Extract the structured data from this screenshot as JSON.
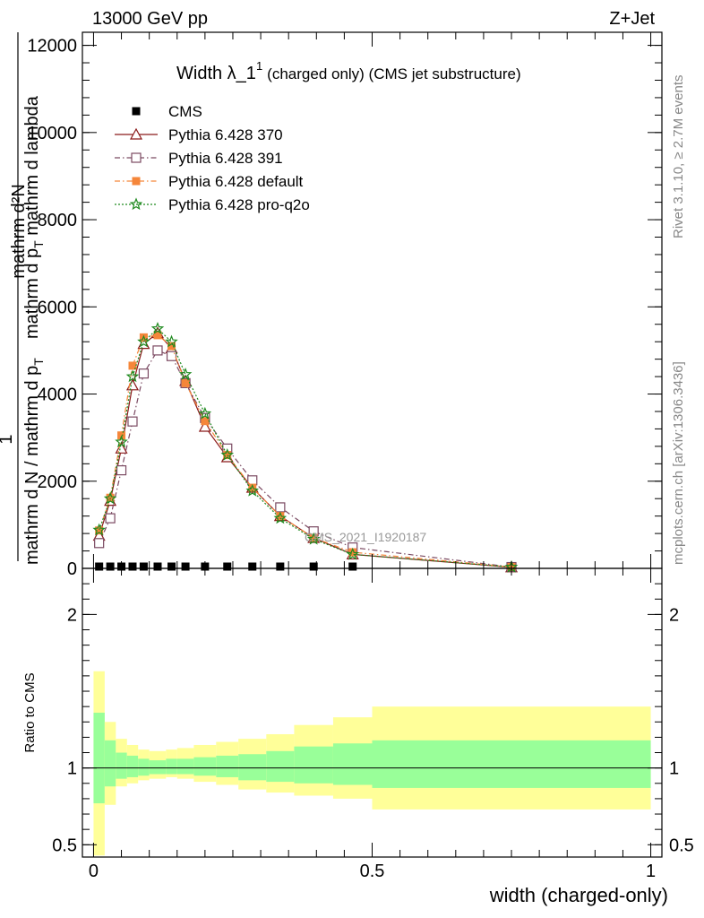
{
  "header": {
    "left": "13000 GeV pp",
    "right": "Z+Jet"
  },
  "title": {
    "main": "Width λ_1",
    "superscript": "1",
    "note": "(charged only) (CMS jet substructure)"
  },
  "side_text": {
    "rivet": "Rivet 3.1.10, ≥ 2.7M events",
    "source": "mcplots.cern.ch [arXiv:1306.3436]"
  },
  "analysis_label": "CMS_2021_I1920187",
  "ylabel_main": {
    "numerator_line1": "mathrm d²N",
    "numerator_line2": "mathrm d p",
    "numerator_sub": "T",
    "numerator_line3": " mathrm d lambda",
    "leading_one": "1",
    "denominator": "mathrm d N / mathrm d p",
    "denominator_sub": "T"
  },
  "ylabel_ratio": "Ratio to CMS",
  "xlabel": "width (charged-only)",
  "colors": {
    "cms": "#000000",
    "p370": "#8b1a1a",
    "p391": "#7b4a62",
    "pdefault": "#f5863a",
    "pq2o": "#1f8a1f",
    "band_outer": "#ffff99",
    "band_inner": "#99ff99"
  },
  "chart_data": [
    {
      "type": "line",
      "panel": "main",
      "xlim": [
        -0.02,
        1.02
      ],
      "ylim": [
        0,
        12300
      ],
      "yticks": [
        0,
        2000,
        4000,
        6000,
        8000,
        10000,
        12000
      ],
      "ytick_labels": [
        "0",
        "2000",
        "4000",
        "6000",
        "8000",
        "10000",
        "12000"
      ],
      "legend_position": "top-left",
      "bins": [
        0.0,
        0.02,
        0.04,
        0.06,
        0.08,
        0.1,
        0.13,
        0.15,
        0.18,
        0.22,
        0.26,
        0.31,
        0.36,
        0.43,
        0.5,
        1.0
      ],
      "x": [
        0.01,
        0.03,
        0.05,
        0.07,
        0.09,
        0.115,
        0.14,
        0.165,
        0.2,
        0.24,
        0.285,
        0.335,
        0.395,
        0.465,
        0.75
      ],
      "series": [
        {
          "name": "CMS",
          "key": "cms",
          "marker": "square-filled",
          "values": [
            30,
            30,
            30,
            30,
            30,
            30,
            30,
            30,
            30,
            30,
            30,
            30,
            30,
            30,
            30
          ]
        },
        {
          "name": "Pythia 6.428 370",
          "key": "p370",
          "marker": "triangle-open",
          "dash": "",
          "values": [
            750,
            1550,
            2750,
            4200,
            5150,
            5400,
            5050,
            4300,
            3250,
            2550,
            1850,
            1200,
            700,
            320,
            25
          ]
        },
        {
          "name": "Pythia 6.428 391",
          "key": "p391",
          "marker": "square-open",
          "dash": "6,3,1.5,3",
          "values": [
            580,
            1150,
            2250,
            3370,
            4470,
            5000,
            4870,
            4250,
            3450,
            2750,
            2020,
            1400,
            850,
            480,
            30
          ]
        },
        {
          "name": "Pythia 6.428 default",
          "key": "pdefault",
          "marker": "square-filled",
          "dash": "6,3,1.5,3",
          "values": [
            870,
            1620,
            3050,
            4650,
            5300,
            5350,
            5100,
            4250,
            3380,
            2600,
            1850,
            1200,
            700,
            370,
            30
          ]
        },
        {
          "name": "Pythia 6.428 pro-q2o",
          "key": "pq2o",
          "marker": "star",
          "dash": "2,2",
          "values": [
            880,
            1600,
            2900,
            4400,
            5200,
            5500,
            5200,
            4450,
            3550,
            2600,
            1780,
            1150,
            670,
            320,
            30
          ]
        }
      ]
    },
    {
      "type": "area",
      "panel": "ratio",
      "xlim": [
        -0.02,
        1.02
      ],
      "ylim": [
        0.42,
        2.3
      ],
      "yticks": [
        0.5,
        1,
        2
      ],
      "ytick_labels": [
        "0.5",
        "1",
        "2"
      ],
      "xticks": [
        0,
        0.5,
        1
      ],
      "xtick_labels": [
        "0",
        "0.5",
        "1"
      ],
      "bins": [
        0.0,
        0.02,
        0.04,
        0.06,
        0.08,
        0.1,
        0.13,
        0.15,
        0.18,
        0.22,
        0.26,
        0.31,
        0.36,
        0.43,
        0.5,
        1.0
      ],
      "reference": 1,
      "band_outer": {
        "lo": [
          0.43,
          0.76,
          0.88,
          0.9,
          0.92,
          0.93,
          0.94,
          0.93,
          0.91,
          0.89,
          0.86,
          0.84,
          0.82,
          0.8,
          0.73
        ],
        "hi": [
          1.63,
          1.3,
          1.19,
          1.15,
          1.12,
          1.11,
          1.12,
          1.13,
          1.15,
          1.17,
          1.19,
          1.22,
          1.28,
          1.33,
          1.4
        ]
      },
      "band_inner": {
        "lo": [
          0.77,
          0.88,
          0.93,
          0.94,
          0.95,
          0.96,
          0.96,
          0.96,
          0.95,
          0.94,
          0.92,
          0.91,
          0.9,
          0.89,
          0.87
        ],
        "hi": [
          1.36,
          1.18,
          1.1,
          1.08,
          1.06,
          1.05,
          1.06,
          1.06,
          1.07,
          1.08,
          1.09,
          1.11,
          1.14,
          1.16,
          1.18
        ]
      }
    }
  ]
}
